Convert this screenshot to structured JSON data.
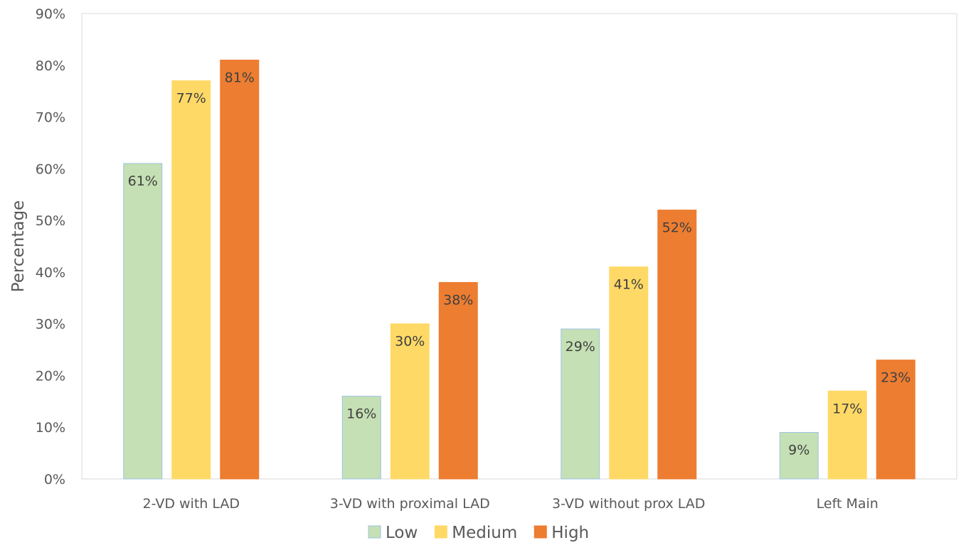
{
  "chart_data": {
    "type": "bar",
    "title": "",
    "xlabel": "",
    "ylabel": "Percentage",
    "ylim": [
      0,
      90
    ],
    "y_ticks": [
      "0%",
      "10%",
      "20%",
      "30%",
      "40%",
      "50%",
      "60%",
      "70%",
      "80%",
      "90%"
    ],
    "grid": false,
    "legend_position": "bottom",
    "categories": [
      "2-VD with LAD",
      "3-VD with proximal LAD",
      "3-VD without prox LAD",
      "Left Main"
    ],
    "series": [
      {
        "name": "Low",
        "color": "#C5E0B4",
        "border": "#9DC3E6",
        "values": [
          61,
          16,
          29,
          9
        ],
        "labels": [
          "61%",
          "16%",
          "29%",
          "9%"
        ]
      },
      {
        "name": "Medium",
        "color": "#FFD966",
        "border": "#FFD966",
        "values": [
          77,
          30,
          41,
          17
        ],
        "labels": [
          "77%",
          "30%",
          "41%",
          "17%"
        ]
      },
      {
        "name": "High",
        "color": "#ED7D31",
        "border": "#ED7D31",
        "values": [
          81,
          38,
          52,
          23
        ],
        "labels": [
          "81%",
          "38%",
          "52%",
          "23%"
        ]
      }
    ]
  }
}
